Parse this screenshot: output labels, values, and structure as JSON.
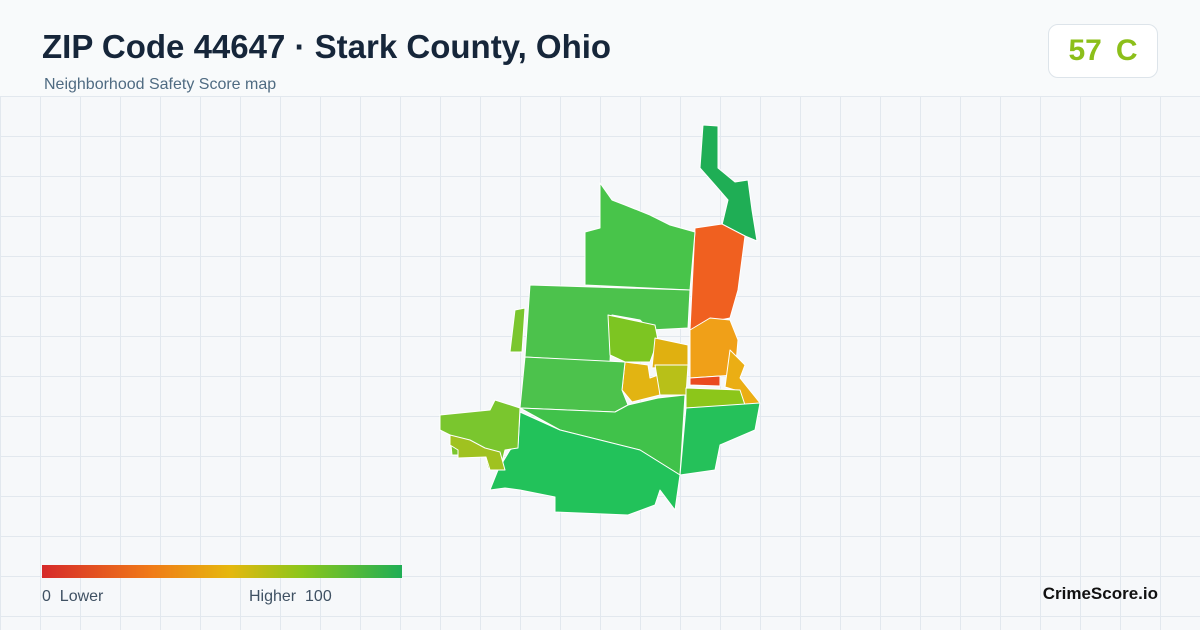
{
  "header": {
    "title": "ZIP Code 44647 · Stark County, Ohio",
    "subtitle": "Neighborhood Safety Score map"
  },
  "score": {
    "value": 57,
    "grade": "C"
  },
  "legend": {
    "min": 0,
    "min_label": "Lower",
    "max_label": "Higher",
    "max": 100
  },
  "brand": "CrimeScore.io"
}
